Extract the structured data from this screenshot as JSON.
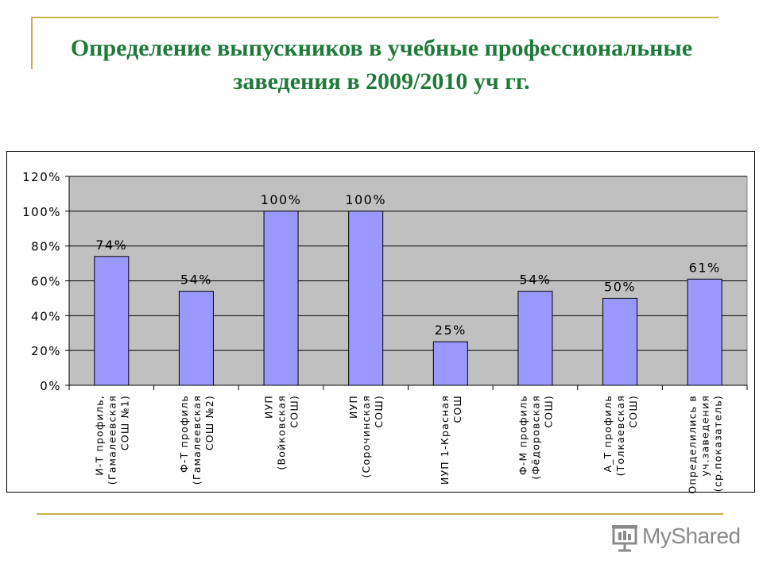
{
  "title": "Определение выпускников в учебные профессиональные заведения в 2009/2010 уч гг.",
  "logo": {
    "text": "MyShared"
  },
  "colors": {
    "bar": "#9999ff",
    "plot_bg": "#c0c0c0",
    "title": "#1f7a3a",
    "deco_line": "#c9b14a"
  },
  "chart_data": {
    "type": "bar",
    "categories": [
      [
        "И-Т профиль,",
        "(Гамалеевская",
        "СОШ №1)"
      ],
      [
        "Ф-Т профиль",
        "(Гамалеевская",
        "СОШ №2)"
      ],
      [
        "ИУП",
        "(Войковская",
        "СОШ)"
      ],
      [
        "ИУП",
        "(Сорочинская",
        "СОШ)"
      ],
      [
        "ИУП 1-Красная",
        "СОШ"
      ],
      [
        "Ф-М профиль",
        "(Фёдоровская",
        "СОШ)"
      ],
      [
        "А_Т профиль",
        "(Толкаевская",
        "СОШ)"
      ],
      [
        "Определились в",
        "уч.заведения",
        "(ср.показатель)"
      ]
    ],
    "values": [
      74,
      54,
      100,
      100,
      25,
      54,
      50,
      61
    ],
    "data_labels": [
      "74%",
      "54%",
      "100%",
      "100%",
      "25%",
      "54%",
      "50%",
      "61%"
    ],
    "y_ticks": [
      "0%",
      "20%",
      "40%",
      "60%",
      "80%",
      "100%",
      "120%"
    ],
    "ylim": [
      0,
      120
    ],
    "grid": true,
    "legend": "none"
  }
}
